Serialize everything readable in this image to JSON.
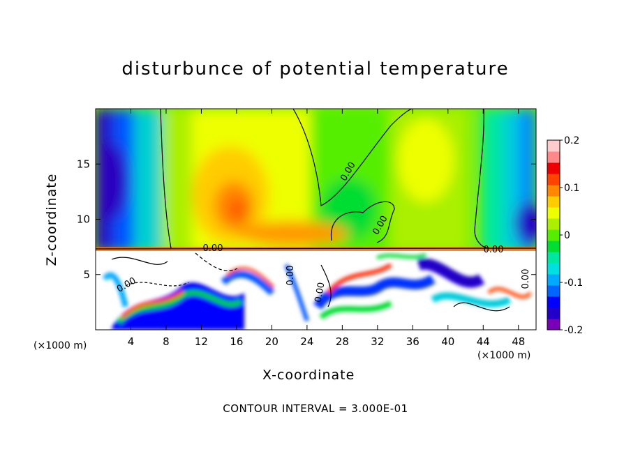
{
  "chart_data": {
    "type": "heatmap",
    "title": "disturbunce of potential temperature",
    "xlabel": "X-coordinate",
    "ylabel": "Z-coordinate",
    "x_unit_label": "(×1000 m)",
    "x_ticks": [
      4,
      8,
      12,
      16,
      20,
      24,
      28,
      32,
      36,
      40,
      44,
      48
    ],
    "y_ticks": [
      5,
      10,
      15
    ],
    "xlim": [
      0,
      50
    ],
    "ylim": [
      0,
      20
    ],
    "colorbar": {
      "range": [
        -0.2,
        0.2
      ],
      "tick_labels": [
        "0.2",
        "0.1",
        "0",
        "-0.1",
        "-0.2"
      ],
      "tick_values": [
        0.2,
        0.1,
        0,
        -0.1,
        -0.2
      ],
      "colors": [
        "#7a00b8",
        "#2200c8",
        "#0000ff",
        "#0066ff",
        "#00aaff",
        "#00e0e0",
        "#00e8a0",
        "#00dd33",
        "#55ee00",
        "#aaf000",
        "#eeff00",
        "#ffcc00",
        "#ff8800",
        "#ff4400",
        "#ee0000",
        "#ff8888",
        "#ffcccc"
      ]
    },
    "contour_labels": [
      "0.00",
      "0.00",
      "0.00",
      "0.00",
      "0.00",
      "0.00",
      "0.00",
      "0.00"
    ],
    "grid": false
  },
  "footer": "CONTOUR INTERVAL = 3.000E-01"
}
